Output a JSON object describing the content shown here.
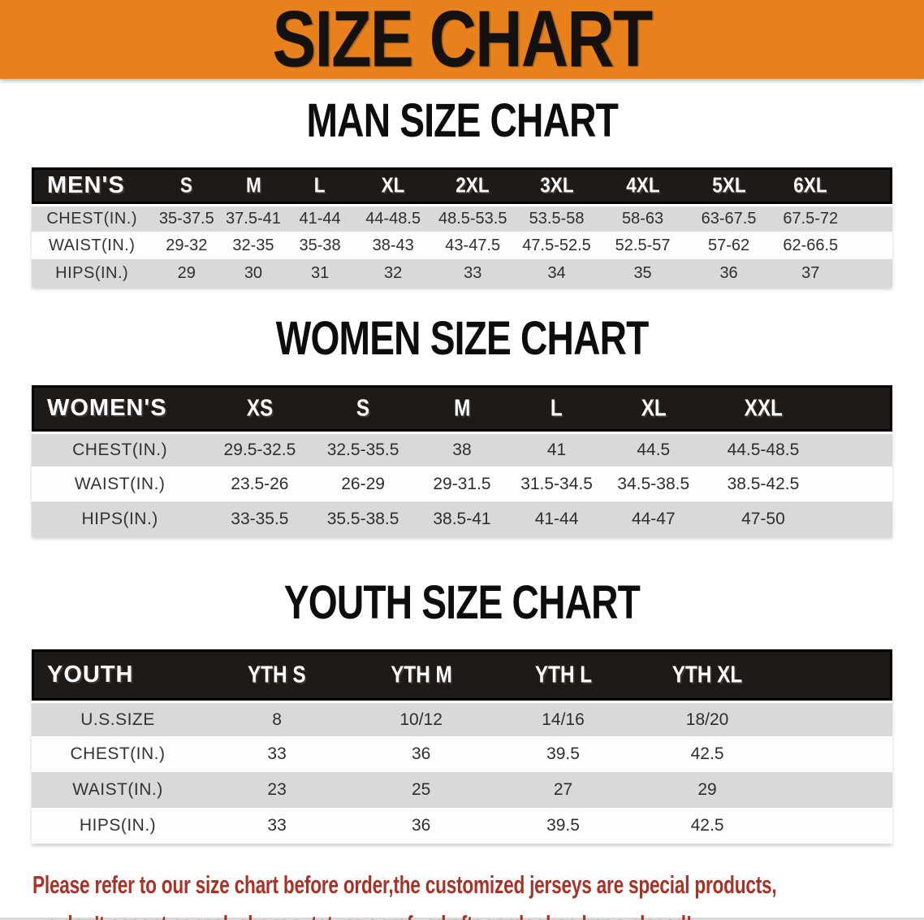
{
  "banner": {
    "title": "SIZE CHART"
  },
  "colors": {
    "banner_bg": "#e8811b",
    "table_header_bg": "#1d1a17",
    "stripe": "#d9d9d9",
    "note_text": "#a93226"
  },
  "chart_data": [
    {
      "type": "table",
      "title": "MAN SIZE CHART",
      "corner_label": "MEN'S",
      "columns": [
        "S",
        "M",
        "L",
        "XL",
        "2XL",
        "3XL",
        "4XL",
        "5XL",
        "6XL"
      ],
      "rows": [
        {
          "label": "CHEST(IN.)",
          "values": [
            "35-37.5",
            "37.5-41",
            "41-44",
            "44-48.5",
            "48.5-53.5",
            "53.5-58",
            "58-63",
            "63-67.5",
            "67.5-72"
          ]
        },
        {
          "label": "WAIST(IN.)",
          "values": [
            "29-32",
            "32-35",
            "35-38",
            "38-43",
            "43-47.5",
            "47.5-52.5",
            "52.5-57",
            "57-62",
            "62-66.5"
          ]
        },
        {
          "label": "HIPS(IN.)",
          "values": [
            "29",
            "30",
            "31",
            "32",
            "33",
            "34",
            "35",
            "36",
            "37"
          ]
        }
      ]
    },
    {
      "type": "table",
      "title": "WOMEN SIZE CHART",
      "corner_label": "WOMEN'S",
      "columns": [
        "XS",
        "S",
        "M",
        "L",
        "XL",
        "XXL"
      ],
      "rows": [
        {
          "label": "CHEST(IN.)",
          "values": [
            "29.5-32.5",
            "32.5-35.5",
            "38",
            "41",
            "44.5",
            "44.5-48.5"
          ]
        },
        {
          "label": "WAIST(IN.)",
          "values": [
            "23.5-26",
            "26-29",
            "29-31.5",
            "31.5-34.5",
            "34.5-38.5",
            "38.5-42.5"
          ]
        },
        {
          "label": "HIPS(IN.)",
          "values": [
            "33-35.5",
            "35.5-38.5",
            "38.5-41",
            "41-44",
            "44-47",
            "47-50"
          ]
        }
      ]
    },
    {
      "type": "table",
      "title": "YOUTH SIZE CHART",
      "corner_label": "YOUTH",
      "columns": [
        "YTH S",
        "YTH M",
        "YTH L",
        "YTH XL"
      ],
      "rows": [
        {
          "label": "U.S.SIZE",
          "values": [
            "8",
            "10/12",
            "14/16",
            "18/20"
          ]
        },
        {
          "label": "CHEST(IN.)",
          "values": [
            "33",
            "36",
            "39.5",
            "42.5"
          ]
        },
        {
          "label": "WAIST(IN.)",
          "values": [
            "23",
            "25",
            "27",
            "29"
          ]
        },
        {
          "label": "HIPS(IN.)",
          "values": [
            "33",
            "36",
            "39.5",
            "42.5"
          ]
        }
      ]
    }
  ],
  "note": {
    "line1": "Please refer to our size chart before order,the customized jerseys are special products,",
    "line2": "we don't accept cancel, change, teturn or refund after order has been placed!"
  }
}
